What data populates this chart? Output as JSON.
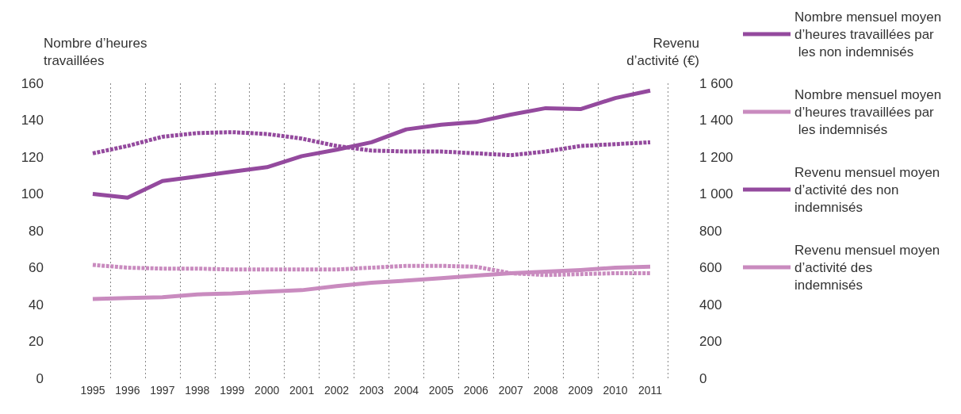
{
  "chart_data": {
    "type": "line",
    "ylabel": "Nombre d’heures\ntravaillées",
    "y2label": "Revenu\nd’activité (€)",
    "categories": [
      "1995",
      "1996",
      "1997",
      "1998",
      "1999",
      "2000",
      "2001",
      "2002",
      "2003",
      "2004",
      "2005",
      "2006",
      "2007",
      "2008",
      "2009",
      "2010",
      "2011"
    ],
    "ylim": [
      0,
      160
    ],
    "yticks": [
      0,
      20,
      40,
      60,
      80,
      100,
      120,
      140,
      160
    ],
    "y2lim": [
      0,
      1600
    ],
    "y2ticks": [
      0,
      200,
      400,
      600,
      800,
      {
        "value": 1000,
        "label": "1 000"
      },
      {
        "value": 1200,
        "label": "1 200"
      },
      {
        "value": 1400,
        "label": "1 400"
      },
      {
        "value": 1600,
        "label": "1 600"
      }
    ],
    "grid": "x",
    "legend": "right",
    "marker": "none",
    "series": [
      {
        "name": "Nombre mensuel moyen d’heures travaillées par les non indemnisés",
        "color": "#944a9e",
        "line_style": "dashed",
        "values": [
          122,
          126,
          131,
          133,
          133.5,
          132.5,
          130,
          126,
          123.5,
          123,
          123,
          122,
          121,
          123,
          126,
          127,
          128
        ]
      },
      {
        "name": "Nombre mensuel moyen d’heures travaillées par les indemnisés",
        "color": "#c98bbf",
        "line_style": "dashed",
        "values": [
          61.5,
          60,
          59.5,
          59.5,
          59,
          59,
          59,
          59,
          60,
          61,
          61,
          60.5,
          57,
          56,
          56.5,
          57,
          57
        ]
      },
      {
        "name": "Revenu mensuel moyen d’activité des non indemnisés",
        "color": "#944a9e",
        "line_style": "solid",
        "axis": "y2",
        "values": [
          1000,
          980,
          1070,
          1095,
          1120,
          1145,
          1205,
          1240,
          1280,
          1350,
          1375,
          1390,
          1430,
          1465,
          1460,
          1520,
          1560
        ]
      },
      {
        "name": "Revenu mensuel moyen d’activité des indemnisés",
        "color": "#c98bbf",
        "line_style": "solid",
        "axis": "y2",
        "values": [
          430,
          435,
          440,
          455,
          460,
          470,
          478,
          500,
          518,
          530,
          543,
          557,
          570,
          578,
          587,
          600,
          605
        ]
      }
    ]
  }
}
